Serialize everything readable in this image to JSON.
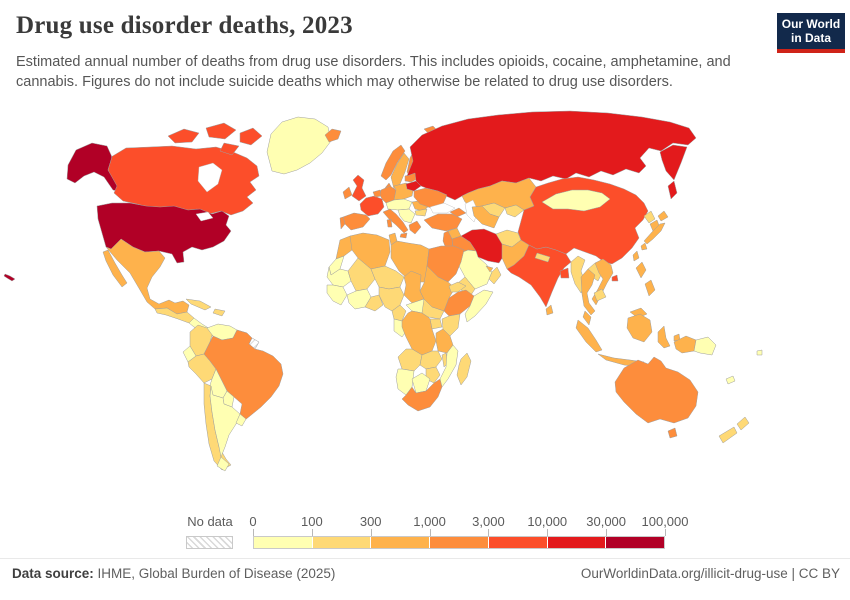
{
  "header": {
    "title": "Drug use disorder deaths, 2023",
    "subtitle": "Estimated annual number of deaths from drug use disorders. This includes opioids, cocaine, amphetamine, and cannabis. Figures do not include suicide deaths which may otherwise be related to drug use disorders."
  },
  "logo": {
    "line1": "Our World",
    "line2": "in Data",
    "bg_color": "#12294b",
    "accent_color": "#cf2318"
  },
  "footer": {
    "source_label": "Data source:",
    "source_value": " IHME, Global Burden of Disease (2025)",
    "right_text": "OurWorldinData.org/illicit-drug-use | CC BY"
  },
  "chart_data": {
    "type": "choropleth",
    "title": "Drug use disorder deaths",
    "year": 2023,
    "unit": "deaths",
    "legend": {
      "no_data_label": "No data",
      "bin_edges": [
        "0",
        "100",
        "300",
        "1,000",
        "3,000",
        "10,000",
        "30,000",
        "100,000"
      ],
      "bin_ranges": [
        "0–100",
        "100–300",
        "300–1,000",
        "1,000–3,000",
        "3,000–10,000",
        "10,000–30,000",
        "30,000–100,000"
      ],
      "bin_colors": [
        "#ffffb2",
        "#fed976",
        "#feb24c",
        "#fd8d3c",
        "#fc4e2a",
        "#e31a1c",
        "#b10026"
      ],
      "no_data_value": -1
    },
    "countries": {
      "usa": 6,
      "canada": 4,
      "greenland": 0,
      "mexico": 2,
      "guatemala-honduras": 1,
      "nicaragua-panama": 0,
      "cuba": 1,
      "hispaniola": 1,
      "colombia": 1,
      "venezuela": 0,
      "guyana-suriname": 0,
      "french-guiana": -1,
      "ecuador": 0,
      "peru": 1,
      "brazil": 3,
      "bolivia": 0,
      "paraguay": 0,
      "chile": 1,
      "argentina": 0,
      "uruguay": 0,
      "iceland": 3,
      "norway": 3,
      "sweden": 2,
      "finland": 3,
      "denmark": 3,
      "uk": 4,
      "ireland": 3,
      "france": 4,
      "spain": 3,
      "portugal": 3,
      "benelux": 3,
      "germany": 3,
      "central-europe": 0,
      "poland": 2,
      "italy": 3,
      "balkans": 0,
      "greece": 3,
      "romania": 2,
      "bulgaria": 1,
      "baltics": 3,
      "belarus": 5,
      "ukraine": 3,
      "russia": 5,
      "kazakhstan": 2,
      "uzbekistan": 1,
      "kyrgyzstan": 1,
      "turkmenistan": 2,
      "caucasus": 3,
      "turkey": 3,
      "syria": 2,
      "levant": 3,
      "iraq": 3,
      "iran": 5,
      "saudi-arabia": 0,
      "yemen": 1,
      "oman": 1,
      "uae": 2,
      "afghanistan": 1,
      "pakistan": 2,
      "india": 4,
      "nepal": 1,
      "bangladesh": 4,
      "sri-lanka": 2,
      "china": 4,
      "taiwan": 2,
      "mongolia": 0,
      "north-korea": 1,
      "south-korea": 2,
      "japan": 2,
      "myanmar": 1,
      "thailand": 2,
      "laos": 1,
      "vietnam": 2,
      "cambodia": 1,
      "malaysia": 2,
      "indonesia": 2,
      "philippines": 2,
      "west-papua": 2,
      "papua-new-guinea": 0,
      "australia": 3,
      "new-zealand": 1,
      "new-caledonia": 0,
      "fiji": 0,
      "morocco": 2,
      "western-sahara": 0,
      "algeria": 2,
      "tunisia": 2,
      "libya": 2,
      "egypt": 3,
      "mauritania": 0,
      "mali": 1,
      "niger": 1,
      "chad": 2,
      "sudan": 2,
      "south-sudan": 1,
      "eritrea": 1,
      "ethiopia": 3,
      "somalia": 0,
      "senegal-guinea": 0,
      "ivory-coast-burkina": 0,
      "ghana-togo-benin": 1,
      "nigeria": 1,
      "cameroon": 1,
      "central-african-republic": 0,
      "gabon-congo": 0,
      "uganda": 1,
      "kenya": 1,
      "drc": 2,
      "tanzania": 2,
      "angola": 1,
      "zambia": 1,
      "malawi": 1,
      "mozambique": 0,
      "zimbabwe": 1,
      "namibia": 0,
      "botswana": 0,
      "south-africa": 3,
      "madagascar": 1
    }
  }
}
